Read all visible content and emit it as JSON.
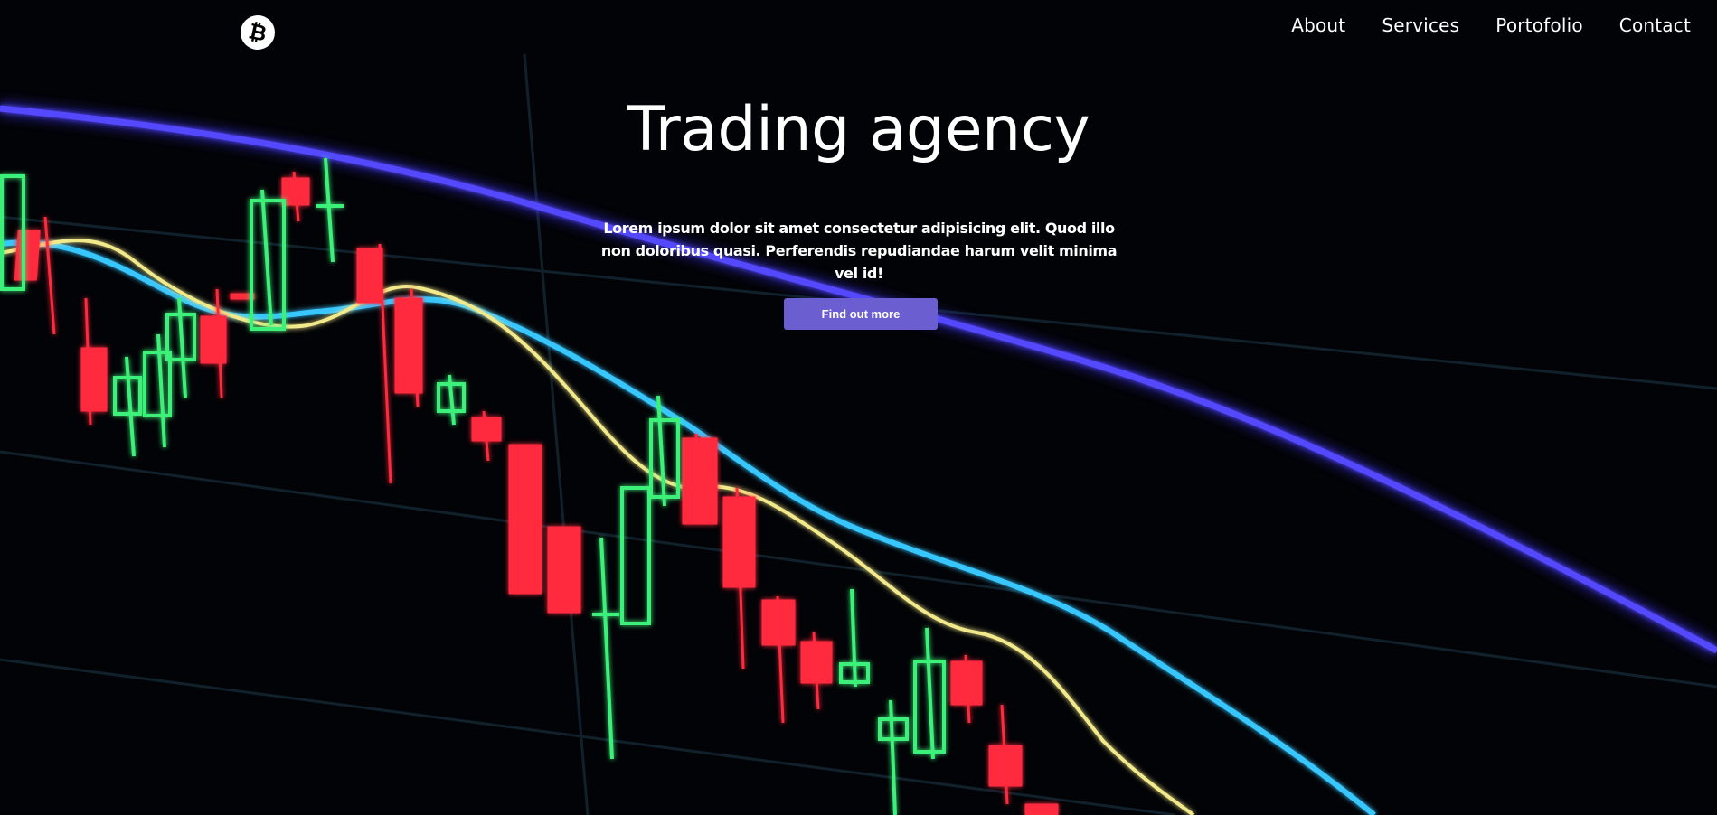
{
  "header": {
    "logo_icon": "bitcoin-icon",
    "logo_glyph": "₿",
    "nav": [
      {
        "label": "About"
      },
      {
        "label": "Services"
      },
      {
        "label": "Portofolio"
      },
      {
        "label": "Contact"
      }
    ]
  },
  "hero": {
    "title": "Trading agency",
    "description": "Lorem ipsum dolor sit amet consectetur adipisicing elit. Quod illo non doloribus quasi. Perferendis repudiandae harum velit minima vel id!",
    "cta_label": "Find out more",
    "background": "candlestick-chart-image"
  },
  "colors": {
    "accent": "#6b5ed1",
    "background": "#020306",
    "bull_candle": "#3cf07a",
    "bear_candle": "#ff2a3c",
    "ma_blue": "#4a3cf0",
    "ma_cyan": "#3cc8ff",
    "ma_yellow": "#f0e37a"
  }
}
